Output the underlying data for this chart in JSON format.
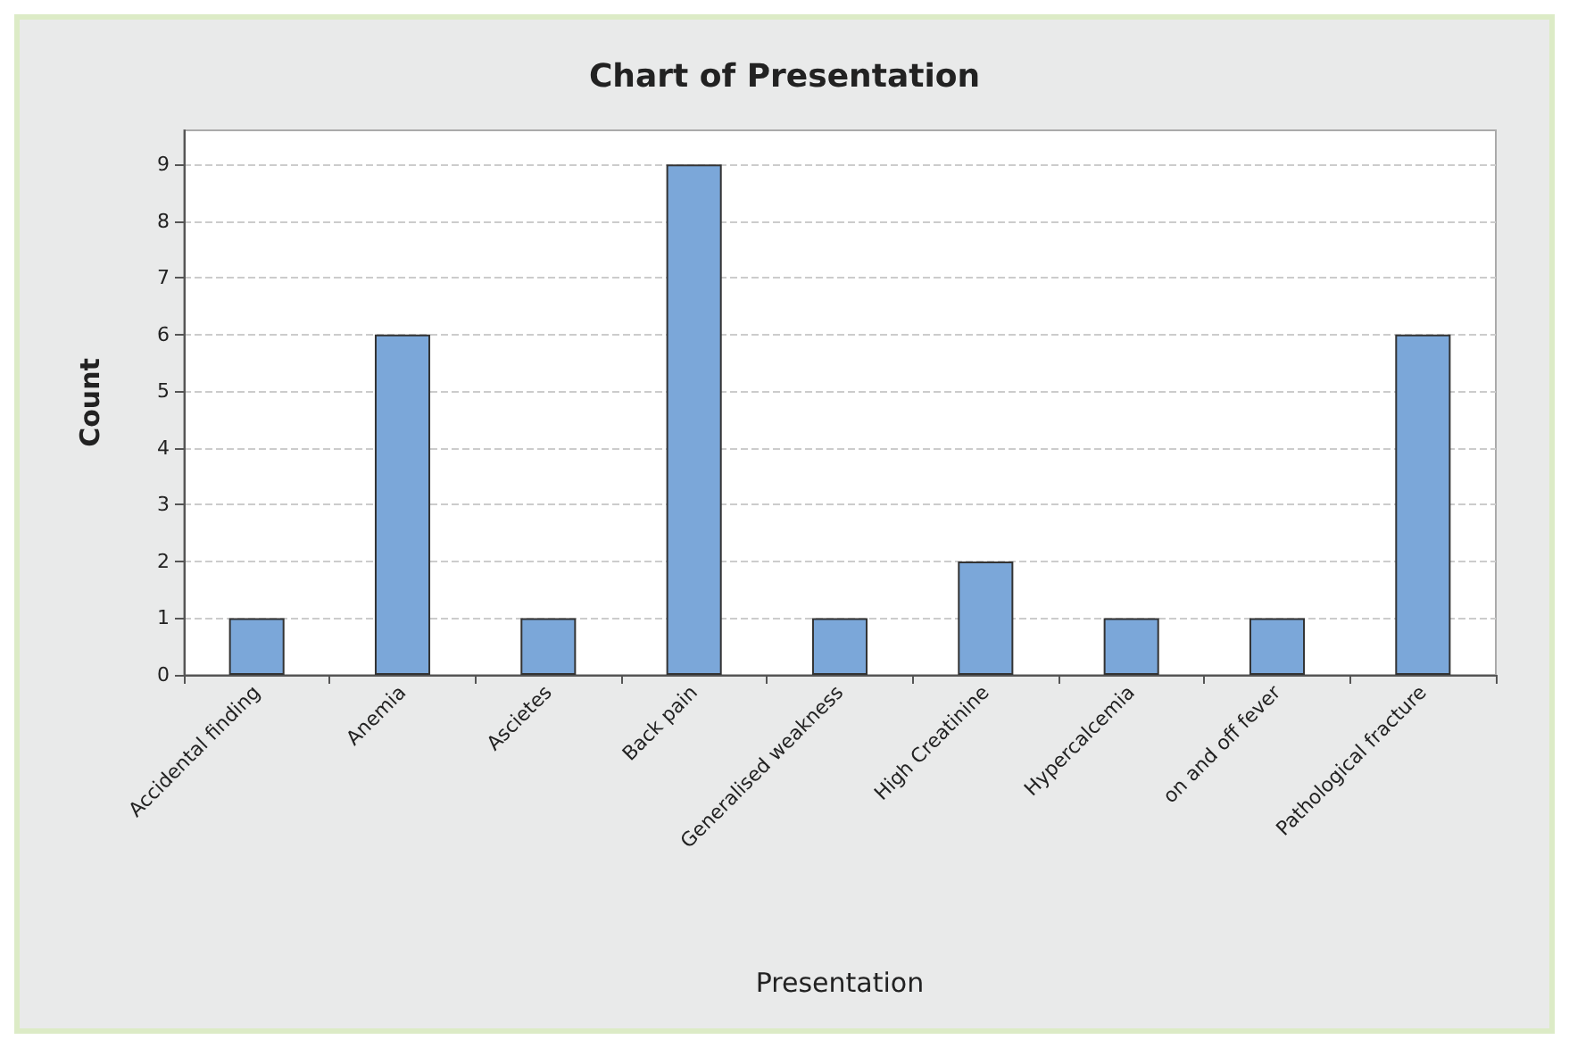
{
  "chart_data": {
    "type": "bar",
    "title": "Chart of Presentation",
    "xlabel": "Presentation",
    "ylabel": "Count",
    "categories": [
      "Accidental finding",
      "Anemia",
      "Ascietes",
      "Back pain",
      "Generalised weakness",
      "High Creatinine",
      "Hypercalcemia",
      "on and off fever",
      "Pathological fracture"
    ],
    "values": [
      1,
      6,
      1,
      9,
      1,
      2,
      1,
      1,
      6
    ],
    "color": "#7ba7d9",
    "ylim": [
      0,
      9.6
    ],
    "yticks": [
      0,
      1,
      2,
      3,
      4,
      5,
      6,
      7,
      8,
      9
    ],
    "grid": "y"
  }
}
